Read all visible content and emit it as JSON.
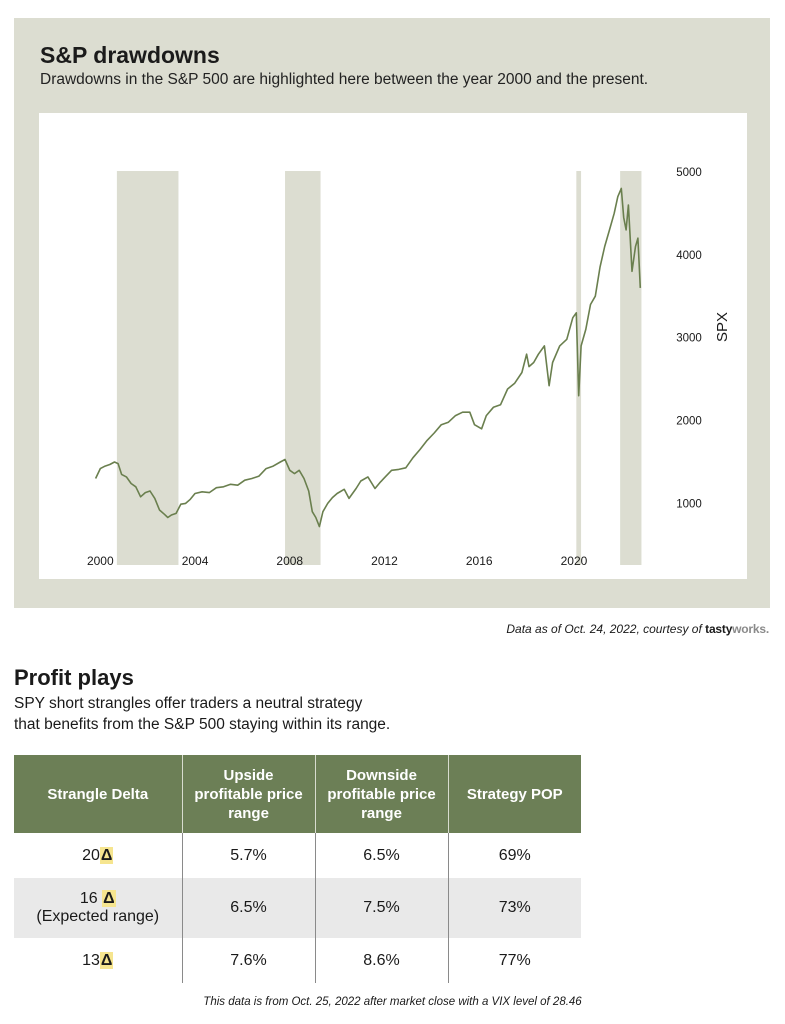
{
  "chart_section": {
    "title": "S&P drawdowns",
    "subtitle": "Drawdowns in the S&P 500 are highlighted here between the year 2000 and the present.",
    "credit_text": "Data as of Oct. 24, 2022, courtesy of",
    "credit_brand_1": "tasty",
    "credit_brand_2": "works."
  },
  "chart_data": {
    "type": "line",
    "title": "S&P drawdowns",
    "xlabel": "",
    "ylabel": "SPX",
    "xlim": [
      1999.1,
      2023.0
    ],
    "ylim": [
      450,
      5300
    ],
    "x_ticks": [
      2000,
      2004,
      2008,
      2012,
      2016,
      2020
    ],
    "y_ticks": [
      1000,
      2000,
      3000,
      4000,
      5000
    ],
    "y_axis_position": "right",
    "grid": false,
    "legend": "none",
    "line_color": "#6a7f4e",
    "band_color": "#dcddd1",
    "drawdown_bands": [
      {
        "start": 2000.7,
        "end": 2003.3
      },
      {
        "start": 2007.8,
        "end": 2009.3
      },
      {
        "start": 2020.1,
        "end": 2020.3
      },
      {
        "start": 2021.95,
        "end": 2022.85
      }
    ],
    "series": [
      {
        "x": [
          1999.8,
          2000.0,
          2000.2,
          2000.4,
          2000.6,
          2000.75,
          2000.9,
          2001.1,
          2001.3,
          2001.5,
          2001.7,
          2001.9,
          2002.1,
          2002.3,
          2002.5,
          2002.7,
          2002.85,
          2003.0,
          2003.2,
          2003.4,
          2003.6,
          2003.8,
          2004.0,
          2004.3,
          2004.6,
          2004.9,
          2005.2,
          2005.5,
          2005.8,
          2006.1,
          2006.4,
          2006.7,
          2007.0,
          2007.3,
          2007.6,
          2007.8,
          2008.0,
          2008.2,
          2008.4,
          2008.6,
          2008.8,
          2008.95,
          2009.1,
          2009.25,
          2009.4,
          2009.6,
          2009.8,
          2010.0,
          2010.3,
          2010.5,
          2010.8,
          2011.0,
          2011.3,
          2011.6,
          2011.8,
          2012.0,
          2012.3,
          2012.6,
          2012.9,
          2013.2,
          2013.5,
          2013.8,
          2014.1,
          2014.4,
          2014.7,
          2015.0,
          2015.3,
          2015.6,
          2015.8,
          2016.1,
          2016.3,
          2016.6,
          2016.9,
          2017.2,
          2017.5,
          2017.8,
          2018.0,
          2018.1,
          2018.3,
          2018.5,
          2018.75,
          2018.95,
          2019.1,
          2019.4,
          2019.7,
          2019.95,
          2020.1,
          2020.2,
          2020.3,
          2020.5,
          2020.7,
          2020.9,
          2021.1,
          2021.3,
          2021.5,
          2021.7,
          2021.85,
          2022.0,
          2022.1,
          2022.2,
          2022.3,
          2022.45,
          2022.6,
          2022.7,
          2022.8
        ],
        "values": [
          1300,
          1420,
          1450,
          1470,
          1500,
          1480,
          1350,
          1320,
          1240,
          1200,
          1080,
          1130,
          1150,
          1060,
          920,
          870,
          830,
          860,
          880,
          990,
          1000,
          1050,
          1120,
          1140,
          1130,
          1190,
          1200,
          1230,
          1220,
          1280,
          1300,
          1330,
          1420,
          1450,
          1500,
          1530,
          1400,
          1360,
          1400,
          1300,
          1150,
          900,
          830,
          720,
          900,
          1000,
          1070,
          1120,
          1170,
          1060,
          1180,
          1270,
          1320,
          1180,
          1250,
          1310,
          1400,
          1410,
          1430,
          1550,
          1650,
          1760,
          1850,
          1950,
          1980,
          2060,
          2100,
          2100,
          1950,
          1900,
          2060,
          2160,
          2190,
          2380,
          2450,
          2580,
          2800,
          2650,
          2700,
          2800,
          2900,
          2420,
          2700,
          2900,
          2980,
          3240,
          3300,
          2300,
          2900,
          3100,
          3400,
          3500,
          3850,
          4100,
          4300,
          4500,
          4700,
          4800,
          4450,
          4300,
          4600,
          3800,
          4100,
          4200,
          3600
        ]
      }
    ]
  },
  "profit_plays": {
    "title": "Profit plays",
    "subtitle_line1": "SPY short strangles offer traders a neutral strategy",
    "subtitle_line2": "that benefits from the S&P 500 staying within its range.",
    "headers": [
      "Strangle Delta",
      "Upside profitable price range",
      "Downside profitable price range",
      "Strategy POP"
    ],
    "delta_symbol": "Δ",
    "rows": [
      {
        "delta": "20",
        "note": "",
        "upside": "5.7%",
        "downside": "6.5%",
        "pop": "69%"
      },
      {
        "delta": "16",
        "note": "(Expected range)",
        "upside": "6.5%",
        "downside": "7.5%",
        "pop": "73%"
      },
      {
        "delta": "13",
        "note": "",
        "upside": "7.6%",
        "downside": "8.6%",
        "pop": "77%"
      }
    ],
    "footnote": "This data is from Oct. 25, 2022 after market close with a VIX level of 28.46"
  }
}
